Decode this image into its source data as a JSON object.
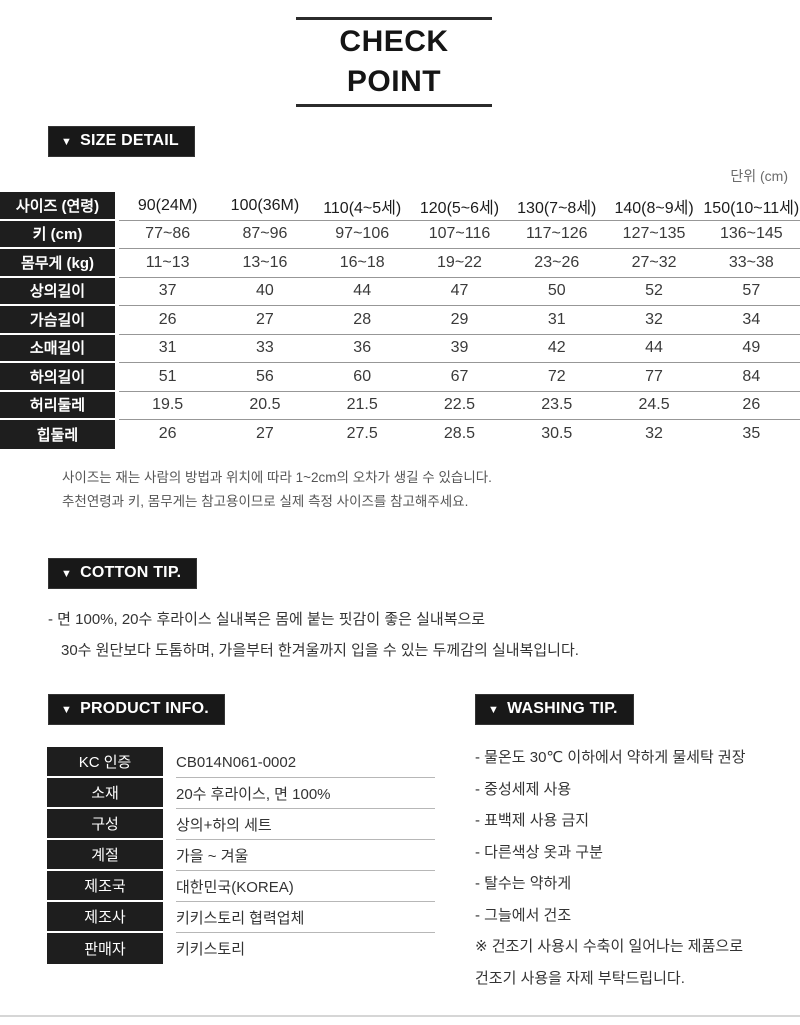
{
  "icons": {
    "triangle_down": "▼"
  },
  "title": "CHECK POINT",
  "size_detail": {
    "badge_label": "SIZE DETAIL",
    "unit": "단위 (cm)",
    "header": {
      "label": "사이즈 (연령)",
      "columns": [
        "90(24M)",
        "100(36M)",
        "110(4~5세)",
        "120(5~6세)",
        "130(7~8세)",
        "140(8~9세)",
        "150(10~11세)"
      ]
    },
    "rows": [
      {
        "label": "키 (cm)",
        "values": [
          "77~86",
          "87~96",
          "97~106",
          "107~116",
          "117~126",
          "127~135",
          "136~145"
        ]
      },
      {
        "label": "몸무게 (kg)",
        "values": [
          "11~13",
          "13~16",
          "16~18",
          "19~22",
          "23~26",
          "27~32",
          "33~38"
        ]
      },
      {
        "label": "상의길이",
        "values": [
          "37",
          "40",
          "44",
          "47",
          "50",
          "52",
          "57"
        ]
      },
      {
        "label": "가슴길이",
        "values": [
          "26",
          "27",
          "28",
          "29",
          "31",
          "32",
          "34"
        ]
      },
      {
        "label": "소매길이",
        "values": [
          "31",
          "33",
          "36",
          "39",
          "42",
          "44",
          "49"
        ]
      },
      {
        "label": "하의길이",
        "values": [
          "51",
          "56",
          "60",
          "67",
          "72",
          "77",
          "84"
        ]
      },
      {
        "label": "허리둘레",
        "values": [
          "19.5",
          "20.5",
          "21.5",
          "22.5",
          "23.5",
          "24.5",
          "26"
        ]
      },
      {
        "label": "힙둘레",
        "values": [
          "26",
          "27",
          "27.5",
          "28.5",
          "30.5",
          "32",
          "35"
        ]
      }
    ],
    "notes": [
      "사이즈는 재는 사람의 방법과 위치에 따라 1~2cm의 오차가 생길 수 있습니다.",
      "추천연령과 키, 몸무게는 참고용이므로 실제 측정 사이즈를 참고해주세요."
    ]
  },
  "cotton_tip": {
    "badge_label": "COTTON TIP.",
    "lines": [
      "- 면 100%, 20수 후라이스 실내복은 몸에 붙는 핏감이 좋은 실내복으로",
      "30수 원단보다 도톰하며, 가을부터 한겨울까지 입을 수 있는 두께감의 실내복입니다."
    ]
  },
  "product_info": {
    "badge_label": "PRODUCT INFO.",
    "rows": [
      {
        "label": "KC 인증",
        "value": "CB014N061-0002"
      },
      {
        "label": "소재",
        "value": "20수 후라이스, 면 100%"
      },
      {
        "label": "구성",
        "value": "상의+하의 세트"
      },
      {
        "label": "계절",
        "value": "가을 ~ 겨울"
      },
      {
        "label": "제조국",
        "value": "대한민국(KOREA)"
      },
      {
        "label": "제조사",
        "value": "키키스토리 협력업체"
      },
      {
        "label": "판매자",
        "value": "키키스토리"
      }
    ]
  },
  "washing_tip": {
    "badge_label": "WASHING TIP.",
    "lines": [
      "- 물온도 30℃ 이하에서 약하게 물세탁 권장",
      "- 중성세제 사용",
      "- 표백제 사용 금지",
      "- 다른색상 옷과 구분",
      "- 탈수는 약하게",
      "- 그늘에서 건조",
      "※ 건조기 사용시 수축이 일어나는 제품으로",
      "건조기 사용을 자제 부탁드립니다."
    ]
  },
  "colors": {
    "badge_bg": "#181818",
    "table_label_bg": "#1e1e1e",
    "value_text": "#3a3a3a",
    "note_text": "#555555",
    "row_line": "#979797"
  }
}
